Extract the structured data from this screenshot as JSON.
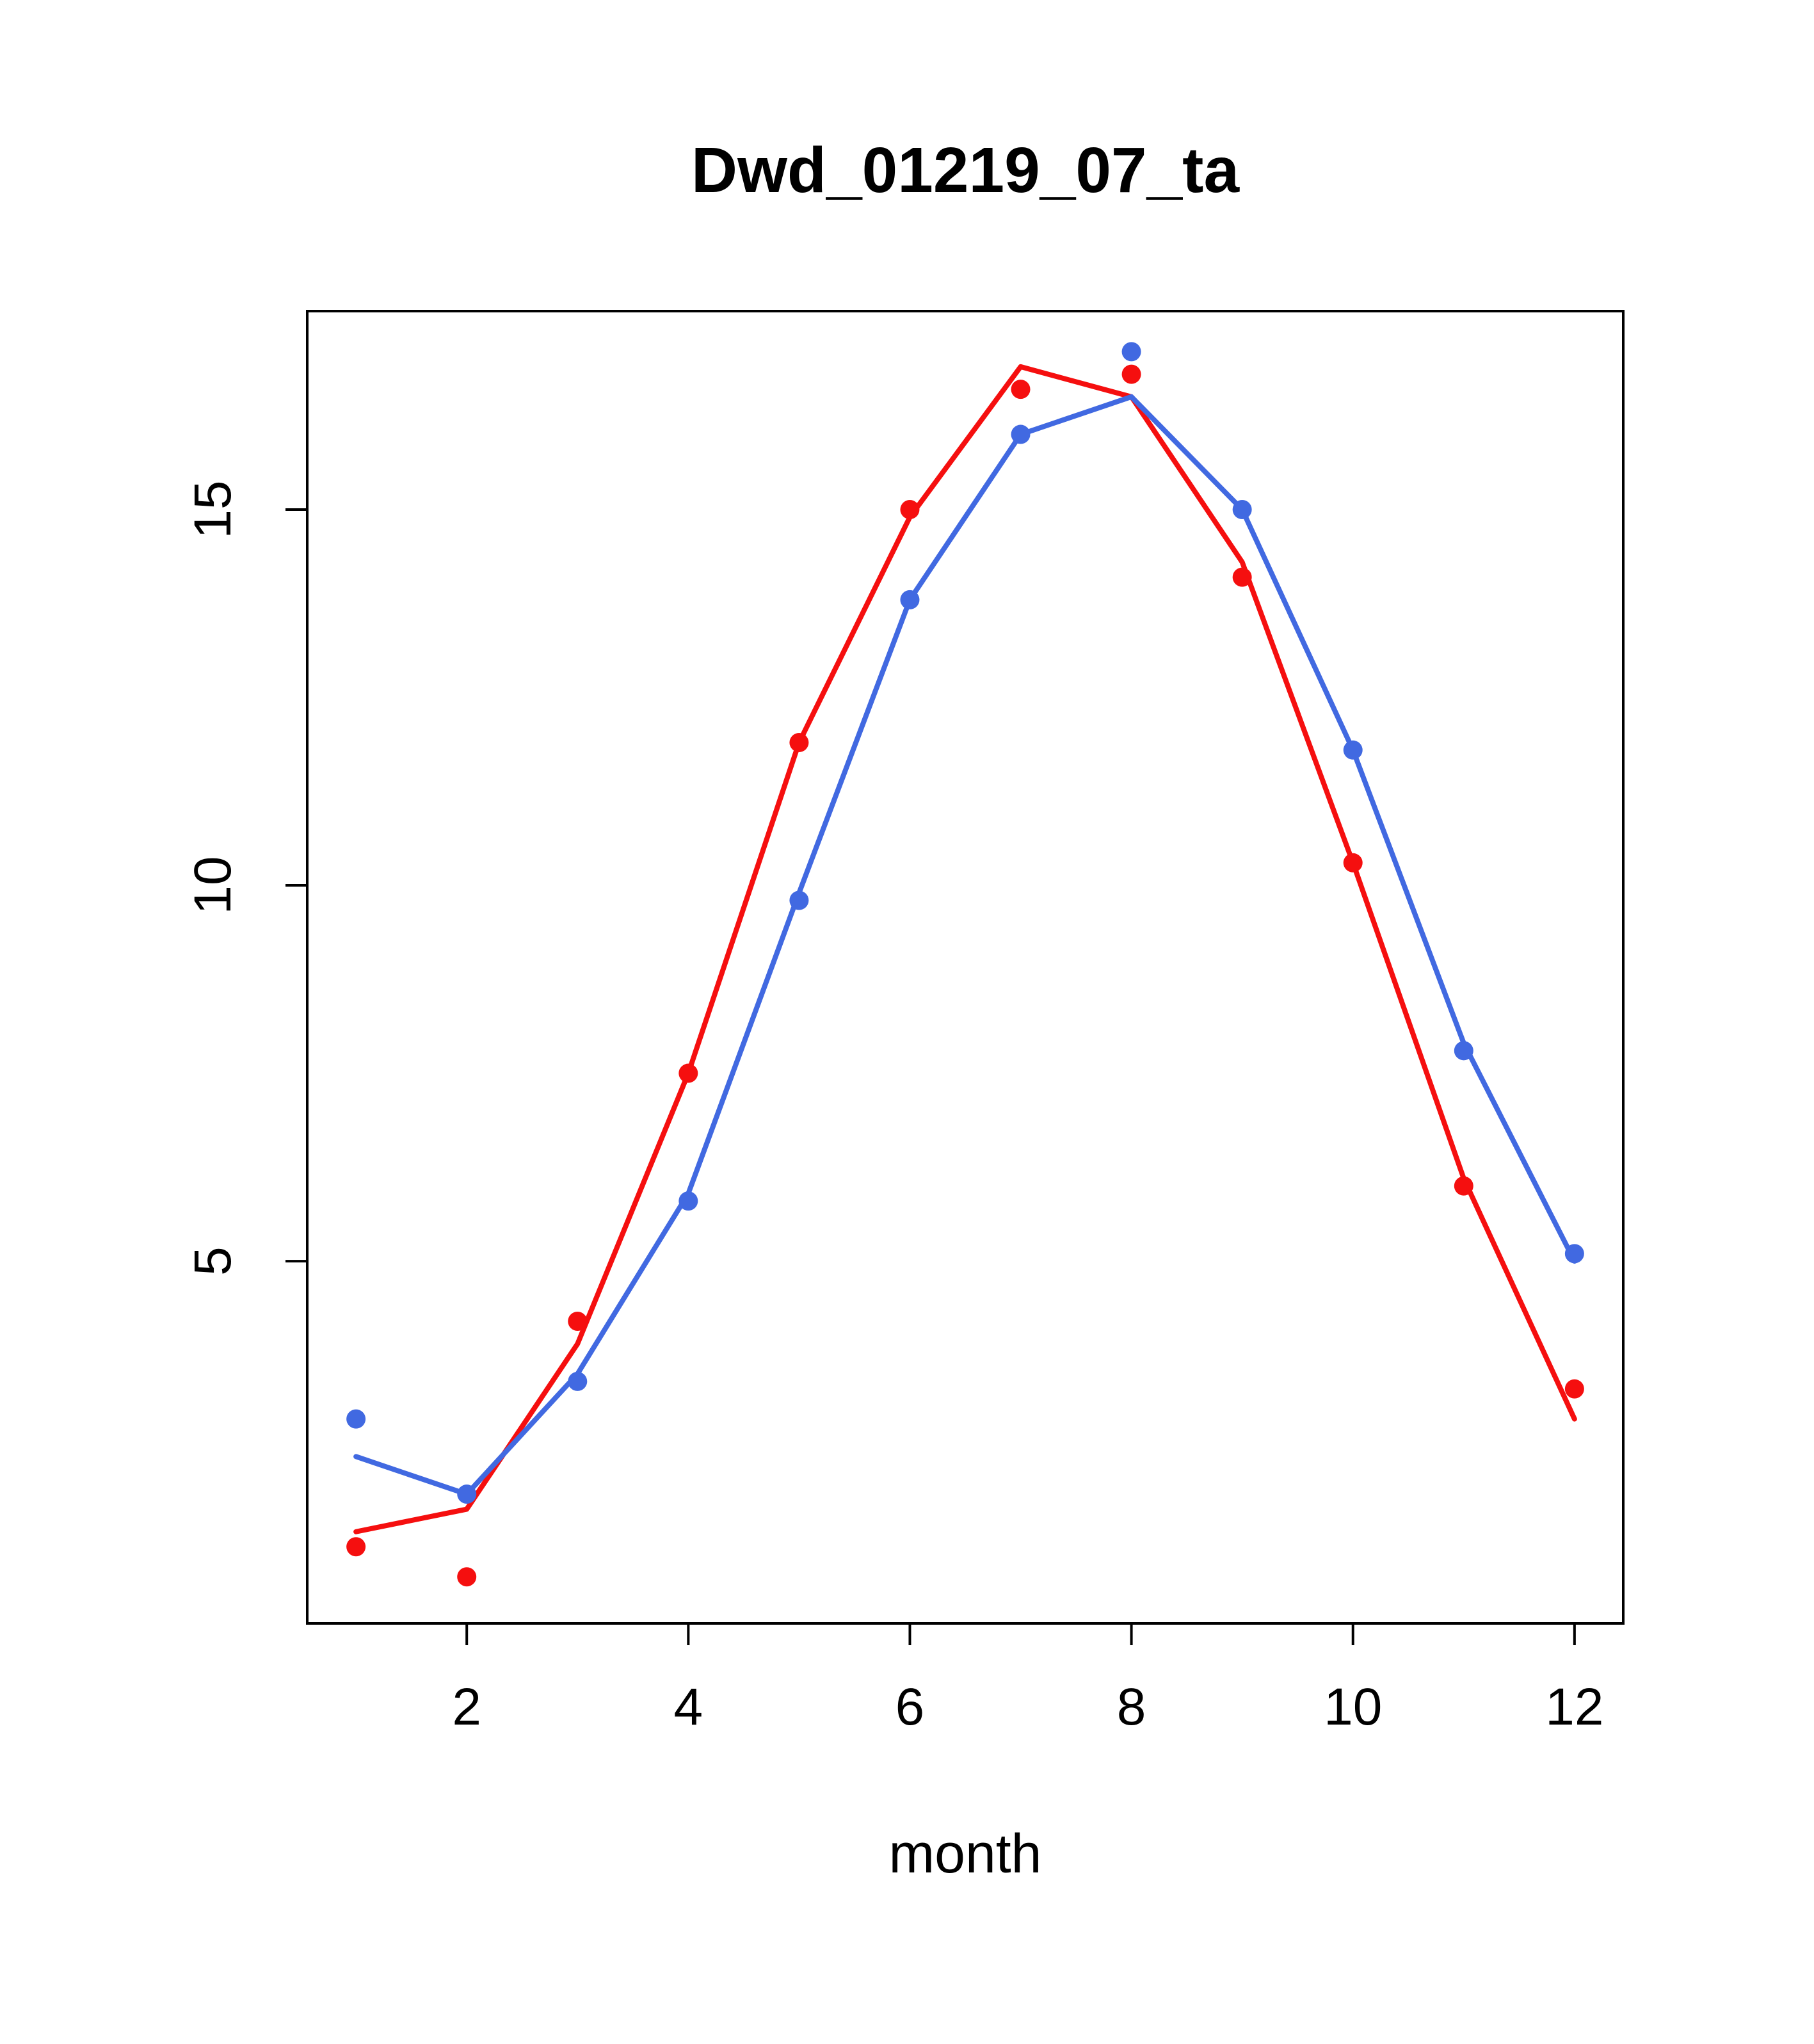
{
  "title": "Dwd_01219_07_ta",
  "xlabel": "month",
  "colors": {
    "red_series": "#f50f0f",
    "blue_series": "#4169e1",
    "axis": "#000000",
    "background": "#ffffff"
  },
  "chart_data": {
    "type": "line",
    "title": "Dwd_01219_07_ta",
    "xlabel": "month",
    "ylabel": "",
    "x": [
      1,
      2,
      3,
      4,
      5,
      6,
      7,
      8,
      9,
      10,
      11,
      12
    ],
    "x_ticks": [
      2,
      4,
      6,
      8,
      10,
      12
    ],
    "y_ticks": [
      5,
      10,
      15
    ],
    "xlim": [
      0.56,
      12.44
    ],
    "ylim": [
      0.18,
      17.64
    ],
    "grid": false,
    "legend": null,
    "series": [
      {
        "name": "red-line",
        "style": "line",
        "color": "#f50f0f",
        "values": [
          1.4,
          1.7,
          3.9,
          7.5,
          11.9,
          14.9,
          16.9,
          16.5,
          14.3,
          10.3,
          6.1,
          2.9
        ]
      },
      {
        "name": "blue-line",
        "style": "line",
        "color": "#4169e1",
        "values": [
          2.4,
          1.9,
          3.5,
          5.9,
          9.9,
          13.8,
          16.0,
          16.5,
          15.0,
          11.8,
          7.9,
          5.0
        ]
      },
      {
        "name": "red-points",
        "style": "points",
        "color": "#f50f0f",
        "values": [
          1.2,
          0.8,
          4.2,
          7.5,
          11.9,
          15.0,
          16.6,
          16.8,
          14.1,
          10.3,
          6.0,
          3.3
        ]
      },
      {
        "name": "blue-points",
        "style": "points",
        "color": "#4169e1",
        "values": [
          2.9,
          1.9,
          3.4,
          5.8,
          9.8,
          13.8,
          16.0,
          17.1,
          15.0,
          11.8,
          7.8,
          5.1
        ]
      }
    ]
  }
}
